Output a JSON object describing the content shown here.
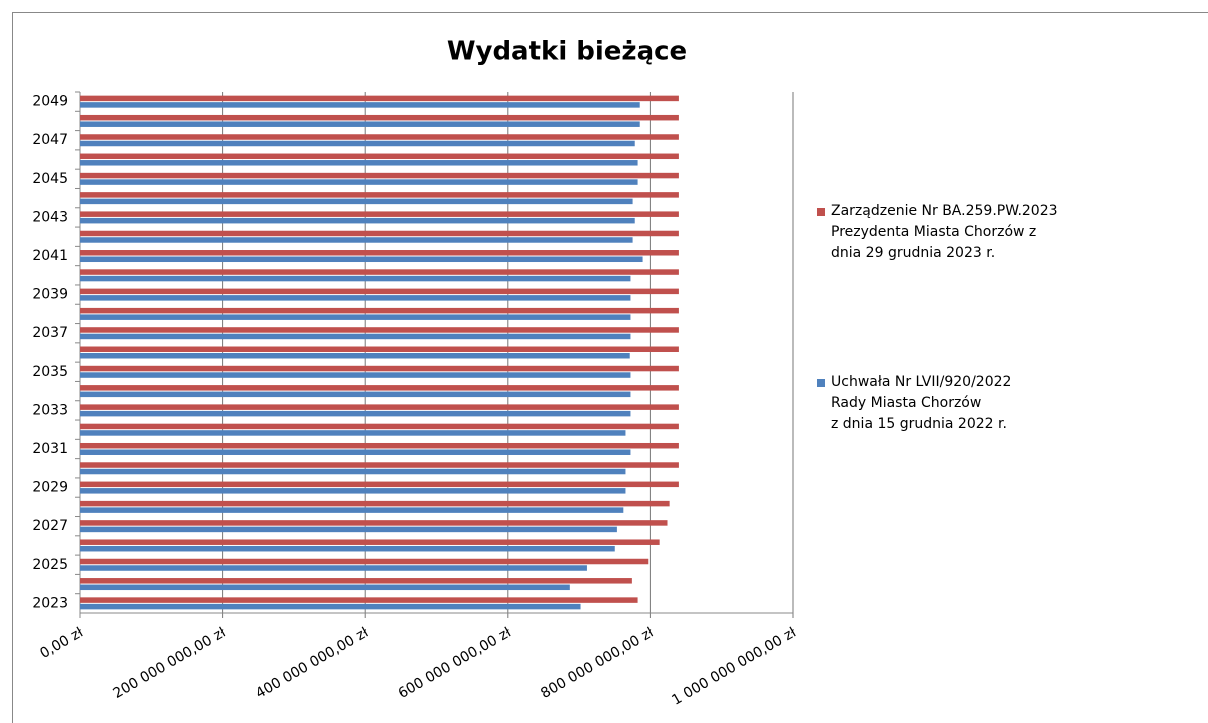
{
  "chart_data": {
    "type": "hbar",
    "title": "Wydatki bieżące",
    "categories": [
      "2023",
      null,
      "2025",
      null,
      "2027",
      null,
      "2029",
      null,
      "2031",
      null,
      "2033",
      null,
      "2035",
      null,
      "2037",
      null,
      "2039",
      null,
      "2041",
      null,
      "2043",
      null,
      "2045",
      null,
      "2047",
      null,
      "2049"
    ],
    "series": [
      {
        "name": "Zarządzenie Nr BA.259.PW.2023\nPrezydenta Miasta Chorzów z\ndnia 29 grudnia 2023 r.",
        "color": "#c0504d",
        "values": [
          782000000,
          774000000,
          797000000,
          813000000,
          824000000,
          827000000,
          840000000,
          840000000,
          840000000,
          840000000,
          840000000,
          840000000,
          840000000,
          840000000,
          840000000,
          840000000,
          840000000,
          840000000,
          840000000,
          840000000,
          840000000,
          840000000,
          840000000,
          840000000,
          840000000,
          840000000,
          840000000
        ]
      },
      {
        "name": "Uchwała Nr LVII/920/2022\nRady Miasta Chorzów\nz dnia 15 grudnia 2022 r.",
        "color": "#4f81bd",
        "values": [
          702000000,
          687000000,
          711000000,
          750000000,
          753000000,
          762000000,
          765000000,
          765000000,
          772000000,
          765000000,
          772000000,
          772000000,
          772000000,
          771000000,
          772000000,
          772000000,
          772000000,
          772000000,
          789000000,
          775000000,
          778000000,
          775000000,
          782000000,
          782000000,
          778000000,
          785000000,
          785000000
        ]
      }
    ],
    "xlim": [
      0,
      1000000000
    ],
    "xticks": [
      {
        "value": 0,
        "label": "0,00 zł"
      },
      {
        "value": 200000000,
        "label": "200 000 000,00 zł"
      },
      {
        "value": 400000000,
        "label": "400 000 000,00 zł"
      },
      {
        "value": 600000000,
        "label": "600 000 000,00 zł"
      },
      {
        "value": 800000000,
        "label": "800 000 000,00 zł"
      },
      {
        "value": 1000000000,
        "label": "1 000 000 000,00 zł"
      }
    ],
    "grid": true
  }
}
